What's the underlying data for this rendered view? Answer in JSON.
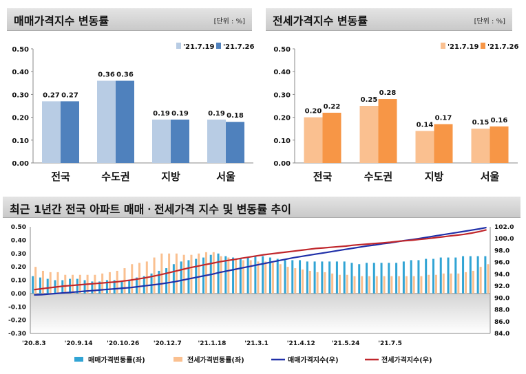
{
  "header1": {
    "title": "매매가격지수 변동률",
    "unit": "[단위 : %]"
  },
  "header2": {
    "title": "전세가격지수 변동률",
    "unit": "[단위 : %]"
  },
  "header3": {
    "title": "최근 1년간 전국 아파트 매매ㆍ전세가격 지수 및 변동률 추이"
  },
  "chart_data": [
    {
      "type": "bar",
      "title": "매매가격지수 변동률",
      "categories": [
        "전국",
        "수도권",
        "지방",
        "서울"
      ],
      "series": [
        {
          "name": "'21.7.19",
          "values": [
            0.27,
            0.36,
            0.19,
            0.19
          ],
          "color": "#b8cce4"
        },
        {
          "name": "'21.7.26",
          "values": [
            0.27,
            0.36,
            0.19,
            0.18
          ],
          "color": "#4f81bd"
        }
      ],
      "ylim": [
        0,
        0.5
      ],
      "yticks": [
        "0.00",
        "0.10",
        "0.20",
        "0.30",
        "0.40",
        "0.50"
      ],
      "legend": "top-right"
    },
    {
      "type": "bar",
      "title": "전세가격지수 변동률",
      "categories": [
        "전국",
        "수도권",
        "지방",
        "서울"
      ],
      "series": [
        {
          "name": "'21.7.19",
          "values": [
            0.2,
            0.25,
            0.14,
            0.15
          ],
          "color": "#fac090"
        },
        {
          "name": "'21.7.26",
          "values": [
            0.22,
            0.28,
            0.17,
            0.16
          ],
          "color": "#f79646"
        }
      ],
      "ylim": [
        0,
        0.5
      ],
      "yticks": [
        "0.00",
        "0.10",
        "0.20",
        "0.30",
        "0.40",
        "0.50"
      ],
      "legend": "top-right"
    },
    {
      "type": "bar+line",
      "title": "최근 1년간 전국 아파트 매매ㆍ전세가격 지수 및 변동률 추이",
      "x_ticks": [
        "'20.8.3",
        "'20.9.14",
        "'20.10.26",
        "'20.12.7",
        "'21.1.18",
        "'21.3.1",
        "'21.4.12",
        "'21.5.24",
        "'21.7.5"
      ],
      "ylim_left": [
        -0.3,
        0.5
      ],
      "yticks_left": [
        "0.50",
        "0.40",
        "0.30",
        "0.20",
        "0.10",
        "0.00",
        "-0.10",
        "-0.20",
        "-0.30"
      ],
      "ylim_right": [
        84.0,
        102.0
      ],
      "yticks_right": [
        "102.0",
        "100.0",
        "98.0",
        "96.0",
        "94.0",
        "92.0",
        "90.0",
        "88.0",
        "86.0",
        "84.0"
      ],
      "series": [
        {
          "name": "매매가격변동률(좌)",
          "axis": "left",
          "kind": "bar",
          "color": "#31a4d4",
          "values": [
            0.13,
            0.12,
            0.11,
            0.1,
            0.1,
            0.11,
            0.11,
            0.1,
            0.09,
            0.09,
            0.1,
            0.1,
            0.09,
            0.1,
            0.12,
            0.13,
            0.15,
            0.17,
            0.19,
            0.22,
            0.24,
            0.25,
            0.26,
            0.27,
            0.29,
            0.3,
            0.28,
            0.27,
            0.26,
            0.27,
            0.28,
            0.28,
            0.27,
            0.26,
            0.25,
            0.25,
            0.25,
            0.24,
            0.24,
            0.24,
            0.24,
            0.24,
            0.24,
            0.23,
            0.22,
            0.23,
            0.23,
            0.23,
            0.23,
            0.23,
            0.24,
            0.25,
            0.25,
            0.26,
            0.26,
            0.27,
            0.27,
            0.27,
            0.28,
            0.28,
            0.28,
            0.28
          ]
        },
        {
          "name": "전세가격변동률(좌)",
          "axis": "left",
          "kind": "bar",
          "color": "#fac090",
          "values": [
            0.2,
            0.17,
            0.16,
            0.16,
            0.14,
            0.14,
            0.14,
            0.14,
            0.14,
            0.15,
            0.16,
            0.17,
            0.19,
            0.22,
            0.23,
            0.24,
            0.27,
            0.3,
            0.3,
            0.3,
            0.29,
            0.29,
            0.3,
            0.31,
            0.31,
            0.28,
            0.27,
            0.26,
            0.25,
            0.25,
            0.24,
            0.24,
            0.23,
            0.22,
            0.2,
            0.19,
            0.18,
            0.17,
            0.16,
            0.16,
            0.15,
            0.14,
            0.14,
            0.13,
            0.13,
            0.13,
            0.13,
            0.13,
            0.13,
            0.13,
            0.13,
            0.13,
            0.13,
            0.14,
            0.14,
            0.15,
            0.15,
            0.15,
            0.16,
            0.17,
            0.2,
            0.22
          ]
        },
        {
          "name": "매매가격지수(우)",
          "axis": "right",
          "kind": "line",
          "color": "#1f2fa8",
          "values": [
            90.5,
            90.55,
            90.65,
            90.75,
            90.85,
            90.95,
            91.05,
            91.15,
            91.25,
            91.35,
            91.45,
            91.55,
            91.65,
            91.75,
            91.9,
            92.05,
            92.2,
            92.35,
            92.55,
            92.75,
            93.0,
            93.25,
            93.5,
            93.75,
            94.0,
            94.3,
            94.55,
            94.8,
            95.05,
            95.3,
            95.55,
            95.8,
            96.05,
            96.3,
            96.55,
            96.8,
            97.0,
            97.2,
            97.4,
            97.6,
            97.8,
            98.0,
            98.2,
            98.4,
            98.6,
            98.8,
            98.95,
            99.15,
            99.3,
            99.5,
            99.7,
            99.85,
            100.05,
            100.25,
            100.45,
            100.65,
            100.85,
            101.05,
            101.25,
            101.45,
            101.65,
            101.9
          ]
        },
        {
          "name": "전세가격지수(우)",
          "axis": "right",
          "kind": "line",
          "color": "#c0262b",
          "values": [
            91.4,
            91.55,
            91.7,
            91.85,
            92.0,
            92.1,
            92.2,
            92.3,
            92.4,
            92.5,
            92.6,
            92.7,
            92.85,
            93.0,
            93.2,
            93.4,
            93.65,
            93.9,
            94.2,
            94.5,
            94.8,
            95.1,
            95.35,
            95.6,
            95.85,
            96.1,
            96.3,
            96.5,
            96.7,
            96.9,
            97.1,
            97.3,
            97.45,
            97.6,
            97.75,
            97.9,
            98.05,
            98.2,
            98.35,
            98.45,
            98.55,
            98.65,
            98.75,
            98.9,
            99.0,
            99.1,
            99.2,
            99.3,
            99.4,
            99.55,
            99.65,
            99.75,
            99.9,
            100.0,
            100.15,
            100.3,
            100.45,
            100.6,
            100.75,
            100.95,
            101.2,
            101.5
          ]
        }
      ],
      "legend": "bottom"
    }
  ]
}
